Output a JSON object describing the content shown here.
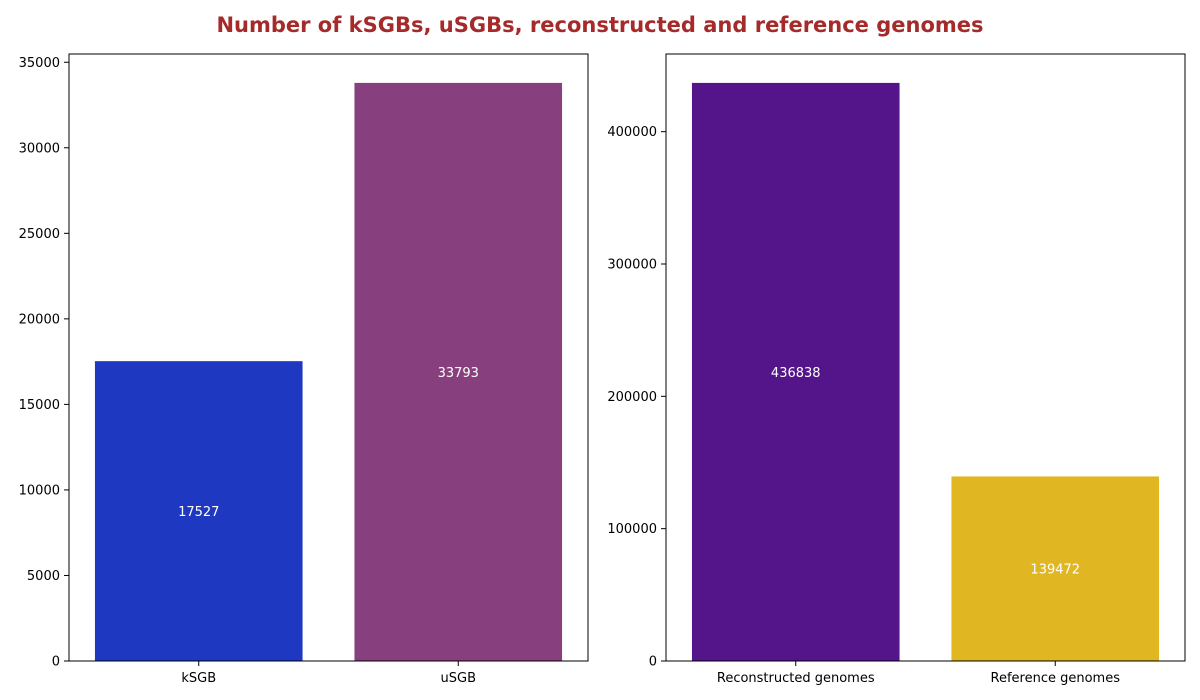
{
  "title": "Number of kSGBs, uSGBs, reconstructed and reference genomes",
  "title_color": "#a52a2a",
  "chart_data": [
    {
      "type": "bar",
      "title": "",
      "xlabel": "",
      "ylabel": "",
      "categories": [
        "kSGB",
        "uSGB"
      ],
      "values": [
        17527,
        33793
      ],
      "value_labels": [
        "17527",
        "33793"
      ],
      "colors": [
        "#1e38c2",
        "#87407d"
      ],
      "ylim": [
        0,
        35482
      ],
      "yticks": [
        0,
        5000,
        10000,
        15000,
        20000,
        25000,
        30000,
        35000
      ],
      "ytick_labels": [
        "0",
        "5000",
        "10000",
        "15000",
        "20000",
        "25000",
        "30000",
        "35000"
      ],
      "grid": false,
      "legend": "none"
    },
    {
      "type": "bar",
      "title": "",
      "xlabel": "",
      "ylabel": "",
      "categories": [
        "Reconstructed genomes",
        "Reference genomes"
      ],
      "values": [
        436838,
        139472
      ],
      "value_labels": [
        "436838",
        "139472"
      ],
      "colors": [
        "#55158a",
        "#e0b722"
      ],
      "ylim": [
        0,
        458680
      ],
      "yticks": [
        0,
        100000,
        200000,
        300000,
        400000
      ],
      "ytick_labels": [
        "0",
        "100000",
        "200000",
        "300000",
        "400000"
      ],
      "grid": false,
      "legend": "none"
    }
  ]
}
